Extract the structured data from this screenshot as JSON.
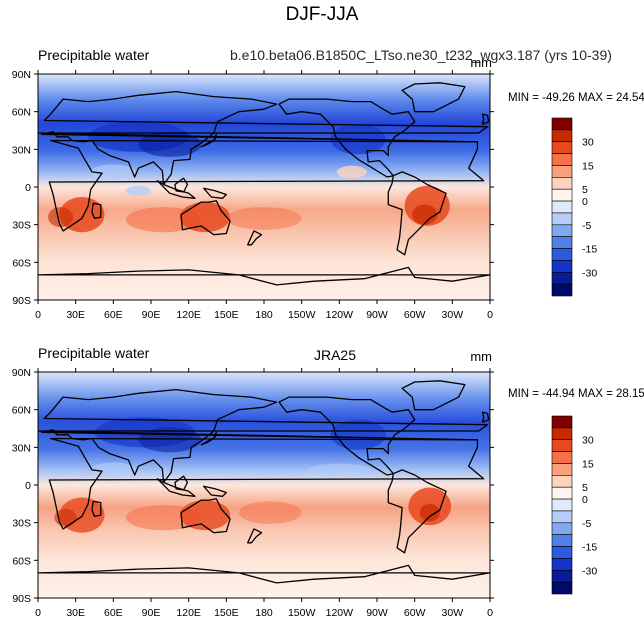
{
  "title": "DJF-JJA",
  "chart_data": [
    {
      "type": "heatmap",
      "subtype": "global contour map",
      "left_title": "Precipitable water",
      "center_title": "b.e10.beta06.B1850C_LTso.ne30_t232_wgx3.187 (yrs 10-39)",
      "units": "mm",
      "min_max_text": "MIN = -49.26 MAX =  24.54",
      "min": -49.26,
      "max": 24.54,
      "x_ticks": [
        "0",
        "30E",
        "60E",
        "90E",
        "120E",
        "150E",
        "180",
        "150W",
        "120W",
        "90W",
        "60W",
        "30W",
        "0"
      ],
      "y_ticks": [
        "90N",
        "60N",
        "30N",
        "0",
        "30S",
        "60S",
        "90S"
      ],
      "xlim": [
        0,
        360
      ],
      "ylim": [
        -90,
        90
      ]
    },
    {
      "type": "heatmap",
      "subtype": "global contour map",
      "left_title": "Precipitable water",
      "center_title": "JRA25",
      "units": "mm",
      "min_max_text": "MIN = -44.94 MAX = 28.15",
      "min": -44.94,
      "max": 28.15,
      "x_ticks": [
        "0",
        "30E",
        "60E",
        "90E",
        "120E",
        "150E",
        "180",
        "150W",
        "120W",
        "90W",
        "60W",
        "30W",
        "0"
      ],
      "y_ticks": [
        "90N",
        "60N",
        "30N",
        "0",
        "30S",
        "60S",
        "90S"
      ],
      "xlim": [
        0,
        360
      ],
      "ylim": [
        -90,
        90
      ]
    }
  ],
  "colorbar": {
    "labels": [
      "30",
      "15",
      "5",
      "0",
      "-5",
      "-15",
      "-30"
    ],
    "colors": [
      "#7f0000",
      "#c62a00",
      "#e8491e",
      "#f5714a",
      "#f9a17d",
      "#fcd3bd",
      "#fff5ee",
      "#dfeaff",
      "#b5cdf8",
      "#80a8f0",
      "#4f7fe8",
      "#2a5be0",
      "#1535c8",
      "#081c9a",
      "#000a6c"
    ]
  }
}
